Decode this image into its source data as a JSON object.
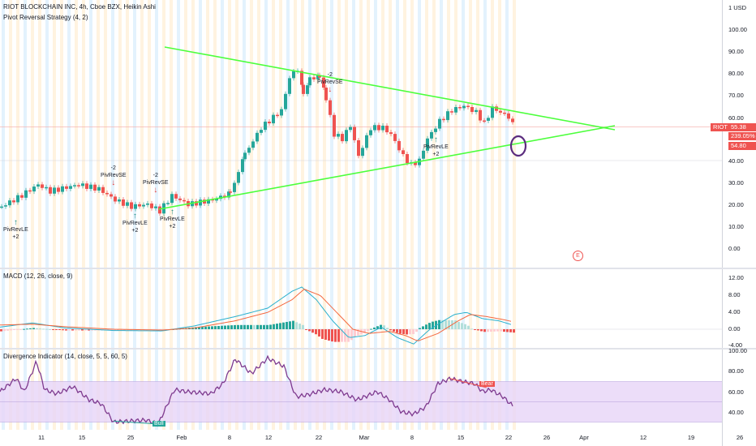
{
  "header": {
    "symbol_title": "RIOT BLOCKCHAIN INC, 4h, Cboe BZX, Heikin Ashi",
    "strategy": "Pivot Reversal Strategy (4, 2)"
  },
  "price_axis": {
    "currency": "1 USD",
    "labels": [
      "100.00",
      "90.00",
      "80.00",
      "70.00",
      "60.00",
      "50.00",
      "40.00",
      "30.00",
      "20.00",
      "10.00",
      "0.00"
    ]
  },
  "price_tags": {
    "symbol": "RIOT",
    "price": "55.38",
    "pct": "239.05%",
    "secondary": "54.80",
    "color_red": "#ef5350"
  },
  "signals": [
    {
      "line1": "PivRevLE",
      "line2": "+2",
      "dir": "up"
    },
    {
      "line1": "-2",
      "line2": "PivRevSE",
      "dir": "down"
    },
    {
      "line1": "PivRevLE",
      "line2": "+2",
      "dir": "up"
    },
    {
      "line1": "-2",
      "line2": "PivRevSE",
      "dir": "down"
    },
    {
      "line1": "PivRevLE",
      "line2": "+2",
      "dir": "up"
    },
    {
      "line1": "-2",
      "line2": "PivRevSE",
      "dir": "down"
    },
    {
      "line1": "PivRevLE",
      "line2": "+2",
      "dir": "up"
    }
  ],
  "earnings_icon": "E",
  "macd": {
    "legend": "MACD (12, 26, close, 9)",
    "axis_labels": [
      "12.00",
      "8.00",
      "4.00",
      "0.00",
      "-4.00"
    ]
  },
  "divergence": {
    "legend": "Divergence Indicator (14, close, 5, 5, 60, 5)",
    "axis_labels": [
      "100.00",
      "80.00",
      "60.00",
      "40.00"
    ],
    "bull_label": "Bull",
    "bear_label": "Bear"
  },
  "time_axis": [
    "11",
    "15",
    "25",
    "Feb",
    "8",
    "12",
    "22",
    "Mar",
    "8",
    "15",
    "22",
    "26",
    "Apr",
    "12",
    "19",
    "26"
  ],
  "colors": {
    "up": "#26a69a",
    "down": "#ef5350",
    "trendline": "#4cff3c",
    "macd_line": "#2ab0ce",
    "signal_line": "#f4683f",
    "rsi_line": "#7e3a8f",
    "rsi_band": "#e7d5f7",
    "circle": "#5b2c7e",
    "up_arrow": "#1f8b80",
    "down_arrow": "#e53935"
  }
}
